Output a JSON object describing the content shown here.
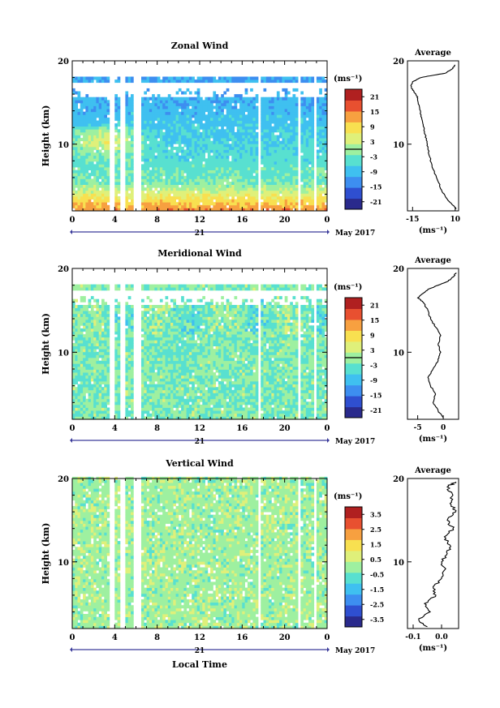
{
  "chart_data": [
    {
      "type": "heatmap",
      "title": "Zonal Wind",
      "ylabel": "Height (km)",
      "ylim": [
        2,
        20
      ],
      "yticks": [
        "10",
        "20"
      ],
      "xlim": [
        0,
        24
      ],
      "xticks": [
        "0",
        "4",
        "8",
        "12",
        "16",
        "20",
        "0"
      ],
      "date_day": "21",
      "date_month": "May 2017",
      "colorbar": {
        "unit": "(ms⁻¹)",
        "range": [
          -24,
          24
        ],
        "ticks": [
          "21",
          "15",
          "9",
          "3",
          "-3",
          "-9",
          "-15",
          "-21"
        ]
      },
      "profile": {
        "title": "Average",
        "xlabel": "(ms⁻¹)",
        "xticks": [
          "-15",
          "10"
        ],
        "xlim": [
          -18,
          12
        ],
        "yticks": [
          "10",
          "20"
        ],
        "points": [
          [
            10.5,
            2.2
          ],
          [
            8,
            2.8
          ],
          [
            5,
            3.5
          ],
          [
            2,
            4.5
          ],
          [
            0,
            5.5
          ],
          [
            -3,
            7
          ],
          [
            -5,
            8.5
          ],
          [
            -6,
            9.5
          ],
          [
            -7,
            10.5
          ],
          [
            -8,
            11.5
          ],
          [
            -9,
            12.5
          ],
          [
            -10,
            13.5
          ],
          [
            -11,
            14.5
          ],
          [
            -12,
            15.5
          ],
          [
            -13,
            16
          ],
          [
            -15,
            16.5
          ],
          [
            -16,
            17
          ],
          [
            -15,
            17.5
          ],
          [
            -10,
            18
          ],
          [
            -2,
            18.3
          ],
          [
            4,
            18.5
          ],
          [
            8,
            19
          ],
          [
            10,
            19.5
          ]
        ]
      }
    },
    {
      "type": "heatmap",
      "title": "Meridional Wind",
      "ylabel": "Height (km)",
      "ylim": [
        2,
        20
      ],
      "yticks": [
        "10",
        "20"
      ],
      "xlim": [
        0,
        24
      ],
      "xticks": [
        "0",
        "4",
        "8",
        "12",
        "16",
        "20",
        "0"
      ],
      "date_day": "21",
      "date_month": "May 2017",
      "colorbar": {
        "unit": "(ms⁻¹)",
        "range": [
          -24,
          24
        ],
        "ticks": [
          "21",
          "15",
          "9",
          "3",
          "-3",
          "-9",
          "-15",
          "-21"
        ]
      },
      "profile": {
        "title": "Average",
        "xlabel": "(ms⁻¹)",
        "xticks": [
          "-5",
          "0"
        ],
        "xlim": [
          -7,
          3
        ],
        "yticks": [
          "10",
          "20"
        ],
        "points": [
          [
            0,
            2.2
          ],
          [
            -1,
            3
          ],
          [
            -2,
            4
          ],
          [
            -1.5,
            5
          ],
          [
            -2.5,
            6
          ],
          [
            -3,
            7
          ],
          [
            -2,
            8
          ],
          [
            -1,
            9
          ],
          [
            -0.5,
            10
          ],
          [
            -1,
            11
          ],
          [
            -0.5,
            12
          ],
          [
            -1.5,
            13
          ],
          [
            -2.5,
            14
          ],
          [
            -3,
            15
          ],
          [
            -4,
            16
          ],
          [
            -5,
            16.5
          ],
          [
            -4,
            17
          ],
          [
            -3,
            17.5
          ],
          [
            -1,
            18
          ],
          [
            1,
            18.5
          ],
          [
            2,
            19
          ],
          [
            2.5,
            19.5
          ]
        ]
      }
    },
    {
      "type": "heatmap",
      "title": "Vertical Wind",
      "ylabel": "Height (km)",
      "xlabel": "Local Time",
      "ylim": [
        2,
        20
      ],
      "yticks": [
        "10",
        "20"
      ],
      "xlim": [
        0,
        24
      ],
      "xticks": [
        "0",
        "4",
        "8",
        "12",
        "16",
        "20",
        "0"
      ],
      "date_day": "21",
      "date_month": "May 2017",
      "colorbar": {
        "unit": "(ms⁻¹)",
        "range": [
          -4,
          4
        ],
        "ticks": [
          "3.5",
          "2.5",
          "1.5",
          "0.5",
          "-0.5",
          "-1.5",
          "-2.5",
          "-3.5"
        ]
      },
      "profile": {
        "title": "Average",
        "xlabel": "(ms⁻¹)",
        "xticks": [
          "-0.1",
          "0.0"
        ],
        "xlim": [
          -0.12,
          0.06
        ],
        "yticks": [
          "10",
          "20"
        ],
        "points": [
          [
            -0.05,
            2.2
          ],
          [
            -0.08,
            3
          ],
          [
            -0.04,
            4
          ],
          [
            -0.06,
            5
          ],
          [
            -0.02,
            6
          ],
          [
            -0.03,
            7
          ],
          [
            0.0,
            8
          ],
          [
            0.01,
            9
          ],
          [
            0.0,
            10
          ],
          [
            0.02,
            11
          ],
          [
            0.03,
            12
          ],
          [
            0.01,
            13
          ],
          [
            0.04,
            14
          ],
          [
            0.02,
            15
          ],
          [
            0.05,
            16
          ],
          [
            0.03,
            17
          ],
          [
            0.04,
            18
          ],
          [
            0.02,
            19
          ],
          [
            0.05,
            19.6
          ]
        ]
      }
    }
  ],
  "colors": {
    "colormap": [
      "#2a2a8c",
      "#2f4fd0",
      "#3d8ef0",
      "#3fc0f0",
      "#58e0d0",
      "#9ef0a0",
      "#dff07a",
      "#f8e050",
      "#f7a040",
      "#e85030",
      "#b02020"
    ],
    "background": "#ffffff",
    "axis": "#000000",
    "date_bar": "#3a3a9a"
  }
}
